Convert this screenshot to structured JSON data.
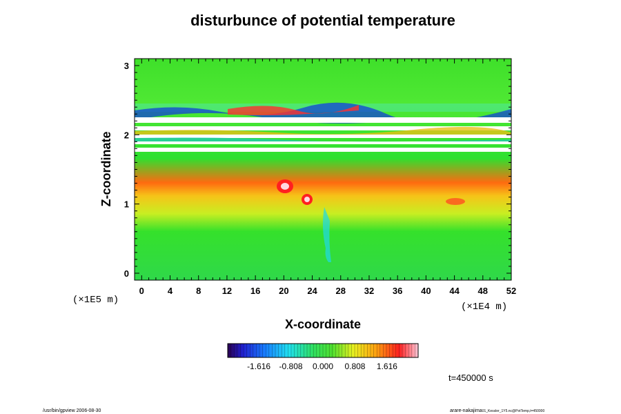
{
  "chart_data": {
    "type": "heatmap",
    "title": "disturbunce of potential temperature",
    "xlabel": "X-coordinate",
    "ylabel": "Z-coordinate",
    "x_scale_note": "(×1E4 m)",
    "z_scale_note": "(×1E5 m)",
    "xlim": [
      -1,
      52
    ],
    "ylim": [
      -0.1,
      3.1
    ],
    "x_ticks": [
      0,
      4,
      8,
      12,
      16,
      20,
      24,
      28,
      32,
      36,
      40,
      44,
      48,
      52
    ],
    "y_ticks": [
      0,
      1,
      2,
      3
    ],
    "grid": false,
    "colorbar": {
      "range": [
        -2.4,
        2.4
      ],
      "tick_values": [
        -1.616,
        -0.808,
        0.0,
        0.808,
        1.616
      ],
      "tick_labels": [
        "-1.616",
        "-0.808",
        "0.000",
        "0.808",
        "1.616"
      ],
      "placement": "bottom-center"
    },
    "time_label": "t=450000 s"
  },
  "footer": {
    "left": "/usr/bin/gpview 2006-08-30",
    "right_main": "arare-nakajima",
    "right_small": "01_Kessler_1Y5.nc@PotTemp,t=450000"
  }
}
